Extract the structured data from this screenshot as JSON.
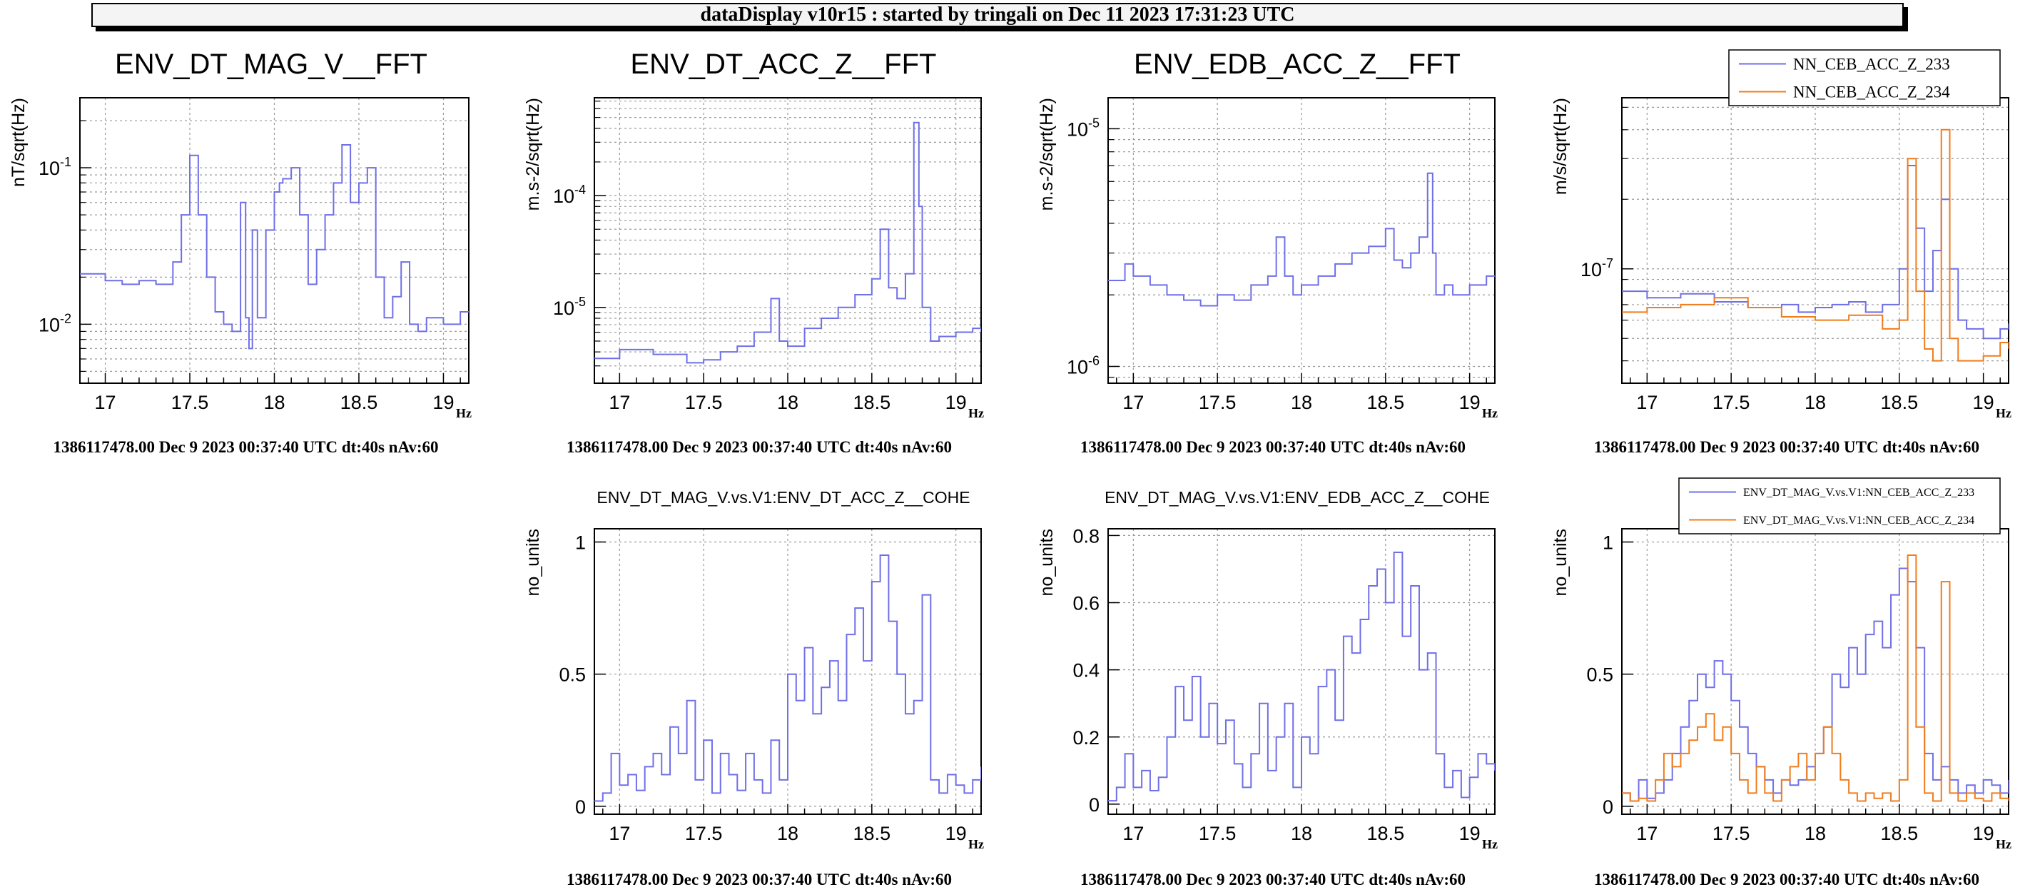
{
  "header": {
    "title": "dataDisplay v10r15 : started by tringali on Dec 11 2023 17:31:23 UTC"
  },
  "colors": {
    "blue": "#6f6fe8",
    "orange": "#f07c1c",
    "grid": "#9a9a9a",
    "axis": "#000000"
  },
  "chart_data": [
    {
      "id": "p1",
      "type": "line",
      "step": true,
      "log": true,
      "title": "ENV_DT_MAG_V__FFT",
      "ylabel": "nT/sqrt(Hz)",
      "xunit": "Hz",
      "footer": "1386117478.00 Dec 9 2023 00:37:40 UTC dt:40s nAv:60",
      "xlim": [
        16.85,
        19.15
      ],
      "ylim": [
        0.0042,
        0.28
      ],
      "xticks": [
        "17",
        "17.5",
        "18",
        "18.5",
        "19"
      ],
      "yticks": [
        {
          "v": 0.1,
          "base": "10",
          "exp": "-1"
        },
        {
          "v": 0.01,
          "base": "10",
          "exp": "-2"
        }
      ],
      "series": [
        {
          "color": "blue",
          "x": [
            16.85,
            17.0,
            17.1,
            17.2,
            17.3,
            17.4,
            17.45,
            17.5,
            17.55,
            17.6,
            17.65,
            17.7,
            17.75,
            17.8,
            17.83,
            17.85,
            17.87,
            17.9,
            17.95,
            18.0,
            18.03,
            18.05,
            18.1,
            18.15,
            18.2,
            18.25,
            18.3,
            18.35,
            18.4,
            18.45,
            18.5,
            18.55,
            18.6,
            18.65,
            18.7,
            18.75,
            18.8,
            18.85,
            18.9,
            19.0,
            19.1,
            19.15
          ],
          "y": [
            0.021,
            0.019,
            0.018,
            0.019,
            0.018,
            0.025,
            0.05,
            0.12,
            0.05,
            0.02,
            0.012,
            0.01,
            0.009,
            0.06,
            0.011,
            0.007,
            0.04,
            0.011,
            0.04,
            0.07,
            0.08,
            0.085,
            0.1,
            0.05,
            0.018,
            0.03,
            0.05,
            0.08,
            0.14,
            0.06,
            0.08,
            0.1,
            0.02,
            0.011,
            0.015,
            0.025,
            0.01,
            0.009,
            0.011,
            0.01,
            0.012,
            0.012
          ]
        }
      ]
    },
    {
      "id": "p2",
      "type": "line",
      "step": true,
      "log": true,
      "title": "ENV_DT_ACC_Z__FFT",
      "ylabel": "m.s-2/sqrt(Hz)",
      "xunit": "Hz",
      "footer": "1386117478.00 Dec 9 2023 00:37:40 UTC dt:40s nAv:60",
      "xlim": [
        16.85,
        19.15
      ],
      "ylim": [
        2.1e-06,
        0.00075
      ],
      "xticks": [
        "17",
        "17.5",
        "18",
        "18.5",
        "19"
      ],
      "yticks": [
        {
          "v": 0.0001,
          "base": "10",
          "exp": "-4"
        },
        {
          "v": 1e-05,
          "base": "10",
          "exp": "-5"
        }
      ],
      "series": [
        {
          "color": "blue",
          "x": [
            16.85,
            17.0,
            17.2,
            17.4,
            17.5,
            17.6,
            17.7,
            17.8,
            17.9,
            17.95,
            18.0,
            18.1,
            18.2,
            18.3,
            18.4,
            18.5,
            18.55,
            18.6,
            18.65,
            18.7,
            18.75,
            18.78,
            18.8,
            18.85,
            18.9,
            19.0,
            19.1,
            19.15
          ],
          "y": [
            3.5e-06,
            4.2e-06,
            3.8e-06,
            3.2e-06,
            3.4e-06,
            4e-06,
            4.5e-06,
            6e-06,
            1.2e-05,
            5e-06,
            4.5e-06,
            6.5e-06,
            8e-06,
            1e-05,
            1.3e-05,
            1.8e-05,
            5e-05,
            1.5e-05,
            1.2e-05,
            2e-05,
            0.00045,
            8e-05,
            1e-05,
            5e-06,
            5.5e-06,
            6e-06,
            6.5e-06,
            6e-06
          ]
        }
      ]
    },
    {
      "id": "p3",
      "type": "line",
      "step": true,
      "log": true,
      "title": "ENV_EDB_ACC_Z__FFT",
      "ylabel": "m.s-2/sqrt(Hz)",
      "xunit": "Hz",
      "footer": "1386117478.00 Dec 9 2023 00:37:40 UTC dt:40s nAv:60",
      "xlim": [
        16.85,
        19.15
      ],
      "ylim": [
        8.5e-07,
        1.35e-05
      ],
      "xticks": [
        "17",
        "17.5",
        "18",
        "18.5",
        "19"
      ],
      "yticks": [
        {
          "v": 1e-05,
          "base": "10",
          "exp": "-5"
        },
        {
          "v": 1e-06,
          "base": "10",
          "exp": "-6"
        }
      ],
      "series": [
        {
          "color": "blue",
          "x": [
            16.85,
            16.95,
            17.0,
            17.1,
            17.2,
            17.3,
            17.4,
            17.5,
            17.6,
            17.7,
            17.8,
            17.85,
            17.9,
            17.95,
            18.0,
            18.1,
            18.2,
            18.3,
            18.4,
            18.5,
            18.55,
            18.6,
            18.65,
            18.7,
            18.75,
            18.78,
            18.8,
            18.85,
            18.9,
            19.0,
            19.1,
            19.15
          ],
          "y": [
            2.3e-06,
            2.7e-06,
            2.4e-06,
            2.2e-06,
            2e-06,
            1.9e-06,
            1.8e-06,
            2e-06,
            1.9e-06,
            2.2e-06,
            2.4e-06,
            3.5e-06,
            2.4e-06,
            2e-06,
            2.2e-06,
            2.4e-06,
            2.7e-06,
            3e-06,
            3.2e-06,
            3.8e-06,
            2.8e-06,
            2.6e-06,
            3e-06,
            3.5e-06,
            6.5e-06,
            3e-06,
            2e-06,
            2.2e-06,
            2e-06,
            2.2e-06,
            2.4e-06,
            2.4e-06
          ]
        }
      ]
    },
    {
      "id": "p4",
      "type": "line",
      "step": true,
      "log": true,
      "title": "",
      "ylabel": "m/s/sqrt(Hz)",
      "xunit": "Hz",
      "footer": "1386117478.00 Dec 9 2023 00:37:40 UTC dt:40s nAv:60",
      "xlim": [
        16.85,
        19.15
      ],
      "ylim": [
        3.2e-08,
        5.5e-07
      ],
      "xticks": [
        "17",
        "17.5",
        "18",
        "18.5",
        "19"
      ],
      "yticks": [
        {
          "v": 1e-07,
          "base": "10",
          "exp": "-7"
        }
      ],
      "legend": [
        "NN_CEB_ACC_Z_233",
        "NN_CEB_ACC_Z_234"
      ],
      "series": [
        {
          "name": "NN_CEB_ACC_Z_233",
          "color": "blue",
          "x": [
            16.85,
            17.0,
            17.2,
            17.4,
            17.6,
            17.8,
            17.9,
            18.0,
            18.1,
            18.2,
            18.3,
            18.4,
            18.5,
            18.55,
            18.6,
            18.65,
            18.7,
            18.75,
            18.8,
            18.85,
            18.9,
            19.0,
            19.1,
            19.15
          ],
          "y": [
            8e-08,
            7.5e-08,
            7.8e-08,
            7.2e-08,
            6.8e-08,
            7e-08,
            6.5e-08,
            6.8e-08,
            7e-08,
            7.2e-08,
            6.5e-08,
            7e-08,
            1e-07,
            2.8e-07,
            1.5e-07,
            8e-08,
            1.2e-07,
            2e-07,
            1e-07,
            6e-08,
            5.5e-08,
            5e-08,
            5.5e-08,
            5.8e-08
          ]
        },
        {
          "name": "NN_CEB_ACC_Z_234",
          "color": "orange",
          "x": [
            16.85,
            17.0,
            17.2,
            17.4,
            17.6,
            17.8,
            18.0,
            18.2,
            18.4,
            18.5,
            18.55,
            18.6,
            18.65,
            18.7,
            18.75,
            18.8,
            18.85,
            18.9,
            19.0,
            19.1,
            19.15
          ],
          "y": [
            6.5e-08,
            6.8e-08,
            7e-08,
            7.5e-08,
            6.8e-08,
            6.2e-08,
            6e-08,
            6.3e-08,
            5.5e-08,
            6e-08,
            3e-07,
            8e-08,
            4.5e-08,
            4e-08,
            4e-07,
            5e-08,
            4e-08,
            4e-08,
            4.2e-08,
            4.8e-08,
            4.5e-08
          ]
        }
      ]
    },
    {
      "id": "p6",
      "type": "line",
      "step": true,
      "log": false,
      "title": "ENV_DT_MAG_V.vs.V1:ENV_DT_ACC_Z__COHE",
      "ylabel": "no_units",
      "xunit": "Hz",
      "footer": "1386117478.00 Dec 9 2023 00:37:40 UTC dt:40s nAv:60",
      "xlim": [
        16.85,
        19.15
      ],
      "ylim": [
        -0.03,
        1.05
      ],
      "xticks": [
        "17",
        "17.5",
        "18",
        "18.5",
        "19"
      ],
      "yticks": [
        {
          "v": 1,
          "label": "1"
        },
        {
          "v": 0.5,
          "label": "0.5"
        },
        {
          "v": 0,
          "label": "0"
        }
      ],
      "series": [
        {
          "color": "blue",
          "x": [
            16.85,
            16.9,
            16.95,
            17.0,
            17.05,
            17.1,
            17.15,
            17.2,
            17.25,
            17.3,
            17.35,
            17.4,
            17.45,
            17.5,
            17.55,
            17.6,
            17.65,
            17.7,
            17.75,
            17.8,
            17.85,
            17.9,
            17.95,
            18.0,
            18.05,
            18.1,
            18.15,
            18.2,
            18.25,
            18.3,
            18.35,
            18.4,
            18.45,
            18.5,
            18.55,
            18.6,
            18.65,
            18.7,
            18.75,
            18.8,
            18.85,
            18.9,
            18.95,
            19.0,
            19.05,
            19.1,
            19.15
          ],
          "y": [
            0.02,
            0.05,
            0.2,
            0.08,
            0.12,
            0.06,
            0.15,
            0.2,
            0.12,
            0.3,
            0.2,
            0.4,
            0.1,
            0.25,
            0.05,
            0.2,
            0.12,
            0.06,
            0.2,
            0.1,
            0.05,
            0.25,
            0.1,
            0.5,
            0.4,
            0.6,
            0.35,
            0.45,
            0.55,
            0.4,
            0.65,
            0.75,
            0.55,
            0.85,
            0.95,
            0.7,
            0.5,
            0.35,
            0.4,
            0.8,
            0.1,
            0.05,
            0.12,
            0.08,
            0.05,
            0.1,
            0.15
          ]
        }
      ]
    },
    {
      "id": "p7",
      "type": "line",
      "step": true,
      "log": false,
      "title": "ENV_DT_MAG_V.vs.V1:ENV_EDB_ACC_Z__COHE",
      "ylabel": "no_units",
      "xunit": "Hz",
      "footer": "1386117478.00 Dec 9 2023 00:37:40 UTC dt:40s nAv:60",
      "xlim": [
        16.85,
        19.15
      ],
      "ylim": [
        -0.03,
        0.82
      ],
      "xticks": [
        "17",
        "17.5",
        "18",
        "18.5",
        "19"
      ],
      "yticks": [
        {
          "v": 0.8,
          "label": "0.8"
        },
        {
          "v": 0.6,
          "label": "0.6"
        },
        {
          "v": 0.4,
          "label": "0.4"
        },
        {
          "v": 0.2,
          "label": "0.2"
        },
        {
          "v": 0,
          "label": "0"
        }
      ],
      "series": [
        {
          "color": "blue",
          "x": [
            16.85,
            16.9,
            16.95,
            17.0,
            17.05,
            17.1,
            17.15,
            17.2,
            17.25,
            17.3,
            17.35,
            17.4,
            17.45,
            17.5,
            17.55,
            17.6,
            17.65,
            17.7,
            17.75,
            17.8,
            17.85,
            17.9,
            17.95,
            18.0,
            18.05,
            18.1,
            18.15,
            18.2,
            18.25,
            18.3,
            18.35,
            18.4,
            18.45,
            18.5,
            18.55,
            18.6,
            18.65,
            18.7,
            18.75,
            18.8,
            18.85,
            18.9,
            18.95,
            19.0,
            19.05,
            19.1,
            19.15
          ],
          "y": [
            0.01,
            0.05,
            0.15,
            0.05,
            0.1,
            0.04,
            0.08,
            0.2,
            0.35,
            0.25,
            0.38,
            0.2,
            0.3,
            0.18,
            0.25,
            0.12,
            0.05,
            0.15,
            0.3,
            0.1,
            0.2,
            0.3,
            0.05,
            0.2,
            0.15,
            0.35,
            0.4,
            0.25,
            0.5,
            0.45,
            0.55,
            0.65,
            0.7,
            0.6,
            0.75,
            0.5,
            0.65,
            0.4,
            0.45,
            0.15,
            0.05,
            0.1,
            0.02,
            0.08,
            0.15,
            0.12,
            0.1
          ]
        }
      ]
    },
    {
      "id": "p8",
      "type": "line",
      "step": true,
      "log": false,
      "title": "",
      "ylabel": "no_units",
      "xunit": "Hz",
      "footer": "1386117478.00 Dec 9 2023 00:37:40 UTC dt:40s nAv:60",
      "xlim": [
        16.85,
        19.15
      ],
      "ylim": [
        -0.03,
        1.05
      ],
      "xticks": [
        "17",
        "17.5",
        "18",
        "18.5",
        "19"
      ],
      "yticks": [
        {
          "v": 1,
          "label": "1"
        },
        {
          "v": 0.5,
          "label": "0.5"
        },
        {
          "v": 0,
          "label": "0"
        }
      ],
      "legend": [
        "ENV_DT_MAG_V.vs.V1:NN_CEB_ACC_Z_233",
        "ENV_DT_MAG_V.vs.V1:NN_CEB_ACC_Z_234"
      ],
      "series": [
        {
          "name": "ENV_DT_MAG_V.vs.V1:NN_CEB_ACC_Z_233",
          "color": "blue",
          "x": [
            16.85,
            16.9,
            16.95,
            17.0,
            17.05,
            17.1,
            17.15,
            17.2,
            17.25,
            17.3,
            17.35,
            17.4,
            17.45,
            17.5,
            17.55,
            17.6,
            17.65,
            17.7,
            17.75,
            17.8,
            17.85,
            17.9,
            17.95,
            18.0,
            18.05,
            18.1,
            18.15,
            18.2,
            18.25,
            18.3,
            18.35,
            18.4,
            18.45,
            18.5,
            18.55,
            18.6,
            18.65,
            18.7,
            18.75,
            18.8,
            18.85,
            18.9,
            18.95,
            19.0,
            19.05,
            19.1,
            19.15
          ],
          "y": [
            0.05,
            0.02,
            0.1,
            0.03,
            0.05,
            0.1,
            0.2,
            0.3,
            0.4,
            0.5,
            0.45,
            0.55,
            0.5,
            0.4,
            0.3,
            0.2,
            0.15,
            0.1,
            0.05,
            0.1,
            0.08,
            0.1,
            0.15,
            0.2,
            0.3,
            0.5,
            0.45,
            0.6,
            0.5,
            0.65,
            0.7,
            0.6,
            0.8,
            0.9,
            0.85,
            0.6,
            0.2,
            0.1,
            0.15,
            0.1,
            0.05,
            0.08,
            0.05,
            0.1,
            0.08,
            0.05,
            0.1
          ]
        },
        {
          "name": "ENV_DT_MAG_V.vs.V1:NN_CEB_ACC_Z_234",
          "color": "orange",
          "x": [
            16.85,
            16.9,
            16.95,
            17.0,
            17.05,
            17.1,
            17.15,
            17.2,
            17.25,
            17.3,
            17.35,
            17.4,
            17.45,
            17.5,
            17.55,
            17.6,
            17.65,
            17.7,
            17.75,
            17.8,
            17.85,
            17.9,
            17.95,
            18.0,
            18.05,
            18.1,
            18.15,
            18.2,
            18.25,
            18.3,
            18.35,
            18.4,
            18.45,
            18.5,
            18.55,
            18.6,
            18.65,
            18.7,
            18.75,
            18.8,
            18.85,
            18.9,
            18.95,
            19.0,
            19.05,
            19.1,
            19.15
          ],
          "y": [
            0.05,
            0.02,
            0.03,
            0.02,
            0.1,
            0.2,
            0.15,
            0.2,
            0.25,
            0.3,
            0.35,
            0.25,
            0.3,
            0.2,
            0.1,
            0.05,
            0.15,
            0.05,
            0.02,
            0.1,
            0.15,
            0.2,
            0.1,
            0.2,
            0.3,
            0.2,
            0.1,
            0.05,
            0.02,
            0.05,
            0.03,
            0.05,
            0.02,
            0.1,
            0.95,
            0.3,
            0.05,
            0.02,
            0.85,
            0.05,
            0.02,
            0.05,
            0.03,
            0.02,
            0.05,
            0.03,
            0.02
          ]
        }
      ]
    }
  ]
}
